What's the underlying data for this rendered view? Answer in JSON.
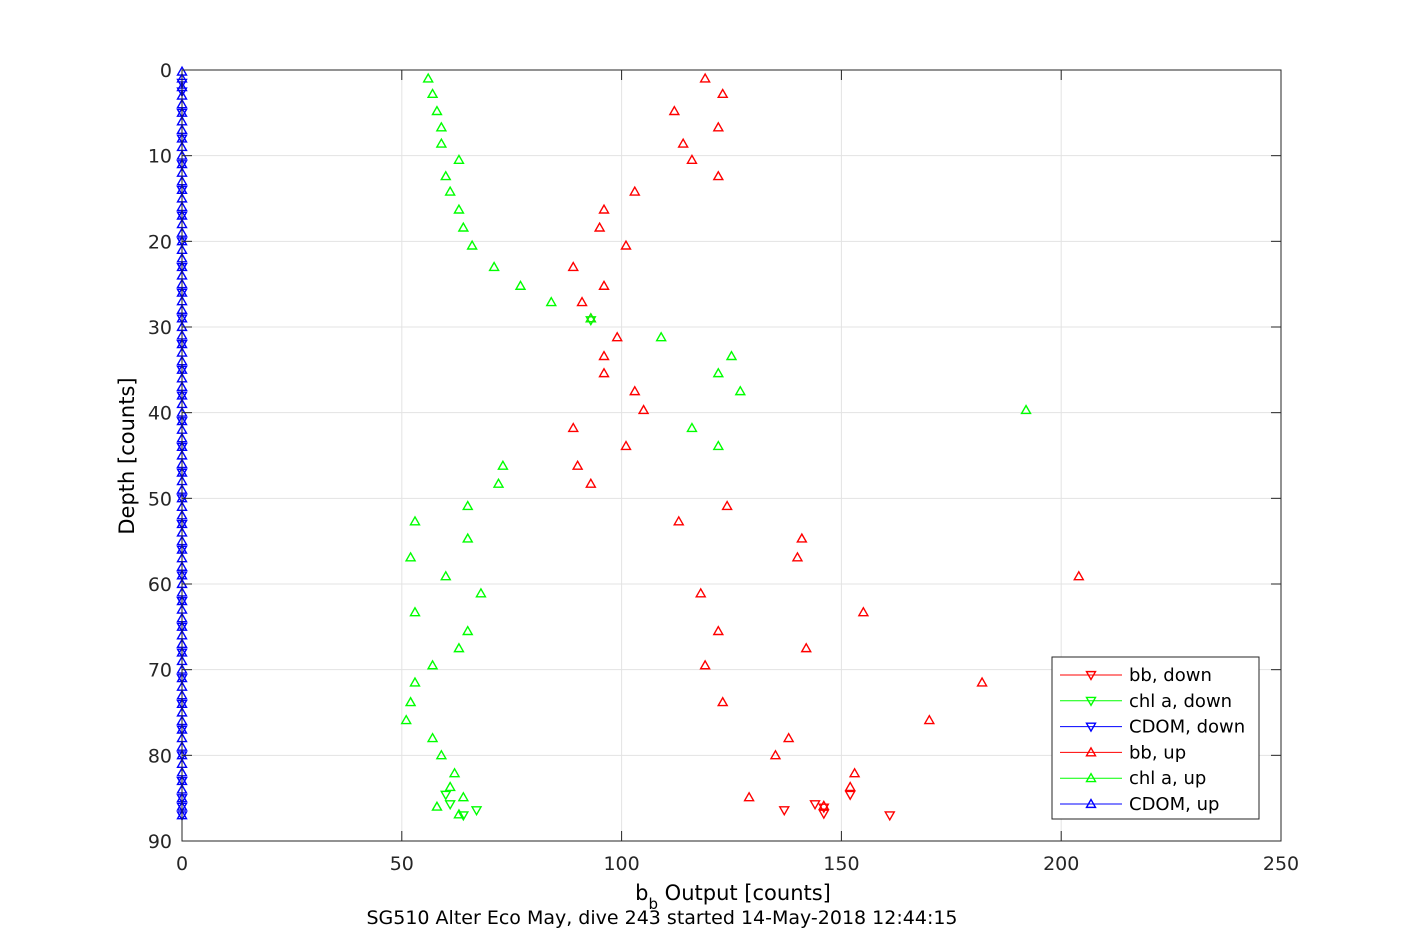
{
  "chart_data": {
    "type": "scatter",
    "title": "SG510 Alter Eco May, dive 243 started 14-May-2018 12:44:15",
    "xlabel_main": "b",
    "xlabel_sub": "b",
    "xlabel_rest": " Output [counts]",
    "ylabel": "Depth [counts]",
    "xlim": [
      0,
      250
    ],
    "ylim": [
      0,
      90
    ],
    "y_reversed": true,
    "xticks": [
      "0",
      "50",
      "100",
      "150",
      "200",
      "250"
    ],
    "yticks": [
      "0",
      "10",
      "20",
      "30",
      "40",
      "50",
      "60",
      "70",
      "80",
      "90"
    ],
    "grid": true,
    "legend_position": "bottom-right",
    "series": [
      {
        "name": "bb, down",
        "color": "#ff0000",
        "marker": "triangle-down",
        "points": [
          [
            161,
            87.0
          ],
          [
            146,
            86.8
          ],
          [
            137,
            86.4
          ],
          [
            146,
            86.1
          ],
          [
            144,
            85.7
          ],
          [
            152,
            84.6
          ]
        ]
      },
      {
        "name": "chl a, down",
        "color": "#00ff00",
        "marker": "triangle-down",
        "points": [
          [
            64,
            87.0
          ],
          [
            67,
            86.4
          ],
          [
            61,
            85.7
          ],
          [
            60,
            84.6
          ],
          [
            93,
            29.2
          ]
        ]
      },
      {
        "name": "CDOM, down",
        "color": "#0000ff",
        "marker": "triangle-down",
        "points": [
          [
            0,
            1.5
          ],
          [
            0,
            2.5
          ],
          [
            0,
            5
          ],
          [
            0,
            8
          ],
          [
            0,
            11
          ],
          [
            0,
            14
          ],
          [
            0,
            17
          ],
          [
            0,
            20
          ],
          [
            0,
            23
          ],
          [
            0,
            26
          ],
          [
            0,
            29
          ],
          [
            0,
            32
          ],
          [
            0,
            35
          ],
          [
            0,
            38
          ],
          [
            0,
            41
          ],
          [
            0,
            44
          ],
          [
            0,
            47
          ],
          [
            0,
            50
          ],
          [
            0,
            53
          ],
          [
            0,
            56
          ],
          [
            0,
            59
          ],
          [
            0,
            62
          ],
          [
            0,
            65
          ],
          [
            0,
            68
          ],
          [
            0,
            71
          ],
          [
            0,
            74
          ],
          [
            0,
            77
          ],
          [
            0,
            80
          ],
          [
            0,
            83
          ],
          [
            0,
            85
          ],
          [
            0,
            86
          ],
          [
            0,
            87
          ]
        ]
      },
      {
        "name": "bb, up",
        "color": "#ff0000",
        "marker": "triangle-up",
        "points": [
          [
            119,
            1.0
          ],
          [
            123,
            2.8
          ],
          [
            112,
            4.8
          ],
          [
            122,
            6.7
          ],
          [
            114,
            8.6
          ],
          [
            116,
            10.5
          ],
          [
            122,
            12.4
          ],
          [
            103,
            14.2
          ],
          [
            96,
            16.3
          ],
          [
            95,
            18.4
          ],
          [
            101,
            20.5
          ],
          [
            89,
            23.0
          ],
          [
            96,
            25.2
          ],
          [
            91,
            27.1
          ],
          [
            93,
            29.0
          ],
          [
            99,
            31.2
          ],
          [
            96,
            33.4
          ],
          [
            96,
            35.4
          ],
          [
            103,
            37.5
          ],
          [
            105,
            39.7
          ],
          [
            89,
            41.8
          ],
          [
            101,
            43.9
          ],
          [
            90,
            46.2
          ],
          [
            93,
            48.3
          ],
          [
            124,
            50.9
          ],
          [
            113,
            52.7
          ],
          [
            141,
            54.7
          ],
          [
            140,
            56.9
          ],
          [
            204,
            59.1
          ],
          [
            118,
            61.1
          ],
          [
            155,
            63.3
          ],
          [
            122,
            65.5
          ],
          [
            142,
            67.5
          ],
          [
            119,
            69.5
          ],
          [
            182,
            71.5
          ],
          [
            123,
            73.8
          ],
          [
            170,
            75.9
          ],
          [
            138,
            78.0
          ],
          [
            135,
            80.0
          ],
          [
            153,
            82.1
          ],
          [
            152,
            83.7
          ],
          [
            129,
            84.9
          ],
          [
            146,
            85.9
          ]
        ]
      },
      {
        "name": "chl a, up",
        "color": "#00ff00",
        "marker": "triangle-up",
        "points": [
          [
            56,
            1.0
          ],
          [
            57,
            2.8
          ],
          [
            58,
            4.8
          ],
          [
            59,
            6.7
          ],
          [
            59,
            8.6
          ],
          [
            63,
            10.5
          ],
          [
            60,
            12.4
          ],
          [
            61,
            14.2
          ],
          [
            63,
            16.3
          ],
          [
            64,
            18.4
          ],
          [
            66,
            20.5
          ],
          [
            71,
            23.0
          ],
          [
            77,
            25.2
          ],
          [
            84,
            27.1
          ],
          [
            93,
            29.0
          ],
          [
            109,
            31.2
          ],
          [
            125,
            33.4
          ],
          [
            122,
            35.4
          ],
          [
            127,
            37.5
          ],
          [
            192,
            39.7
          ],
          [
            116,
            41.8
          ],
          [
            122,
            43.9
          ],
          [
            73,
            46.2
          ],
          [
            72,
            48.3
          ],
          [
            65,
            50.9
          ],
          [
            53,
            52.7
          ],
          [
            65,
            54.7
          ],
          [
            52,
            56.9
          ],
          [
            60,
            59.1
          ],
          [
            68,
            61.1
          ],
          [
            53,
            63.3
          ],
          [
            65,
            65.5
          ],
          [
            63,
            67.5
          ],
          [
            57,
            69.5
          ],
          [
            53,
            71.5
          ],
          [
            52,
            73.8
          ],
          [
            51,
            75.9
          ],
          [
            57,
            78.0
          ],
          [
            59,
            80.0
          ],
          [
            62,
            82.1
          ],
          [
            61,
            83.7
          ],
          [
            64,
            84.9
          ],
          [
            58,
            86.0
          ],
          [
            63,
            86.9
          ]
        ]
      },
      {
        "name": "CDOM, up",
        "color": "#0000ff",
        "marker": "triangle-up",
        "points": [
          [
            0,
            0.2
          ],
          [
            0,
            1.0
          ],
          [
            0,
            2
          ],
          [
            0,
            3
          ],
          [
            0,
            4
          ],
          [
            0,
            5
          ],
          [
            0,
            6
          ],
          [
            0,
            7
          ],
          [
            0,
            8
          ],
          [
            0,
            9
          ],
          [
            0,
            10
          ],
          [
            0,
            11
          ],
          [
            0,
            12
          ],
          [
            0,
            13
          ],
          [
            0,
            14
          ],
          [
            0,
            15
          ],
          [
            0,
            16
          ],
          [
            0,
            17
          ],
          [
            0,
            18
          ],
          [
            0,
            19
          ],
          [
            0,
            20
          ],
          [
            0,
            21
          ],
          [
            0,
            22
          ],
          [
            0,
            23
          ],
          [
            0,
            24
          ],
          [
            0,
            25
          ],
          [
            0,
            26
          ],
          [
            0,
            27
          ],
          [
            0,
            28
          ],
          [
            0,
            29
          ],
          [
            0,
            30
          ],
          [
            0,
            31
          ],
          [
            0,
            32
          ],
          [
            0,
            33
          ],
          [
            0,
            34
          ],
          [
            0,
            35
          ],
          [
            0,
            36
          ],
          [
            0,
            37
          ],
          [
            0,
            38
          ],
          [
            0,
            39
          ],
          [
            0,
            40
          ],
          [
            0,
            41
          ],
          [
            0,
            42
          ],
          [
            0,
            43
          ],
          [
            0,
            44
          ],
          [
            0,
            45
          ],
          [
            0,
            46
          ],
          [
            0,
            47
          ],
          [
            0,
            48
          ],
          [
            0,
            49
          ],
          [
            0,
            50
          ],
          [
            0,
            51
          ],
          [
            0,
            52
          ],
          [
            0,
            53
          ],
          [
            0,
            54
          ],
          [
            0,
            55
          ],
          [
            0,
            56
          ],
          [
            0,
            57
          ],
          [
            0,
            58
          ],
          [
            0,
            59
          ],
          [
            0,
            60
          ],
          [
            0,
            61
          ],
          [
            0,
            62
          ],
          [
            0,
            63
          ],
          [
            0,
            64
          ],
          [
            0,
            65
          ],
          [
            0,
            66
          ],
          [
            0,
            67
          ],
          [
            0,
            68
          ],
          [
            0,
            69
          ],
          [
            0,
            70
          ],
          [
            0,
            71
          ],
          [
            0,
            72
          ],
          [
            0,
            73
          ],
          [
            0,
            74
          ],
          [
            0,
            75
          ],
          [
            0,
            76
          ],
          [
            0,
            77
          ],
          [
            0,
            78
          ],
          [
            0,
            79
          ],
          [
            0,
            80
          ],
          [
            0,
            81
          ],
          [
            0,
            82
          ],
          [
            0,
            83
          ],
          [
            0,
            84
          ],
          [
            0,
            85
          ],
          [
            0,
            86
          ],
          [
            0,
            87
          ]
        ]
      }
    ]
  }
}
